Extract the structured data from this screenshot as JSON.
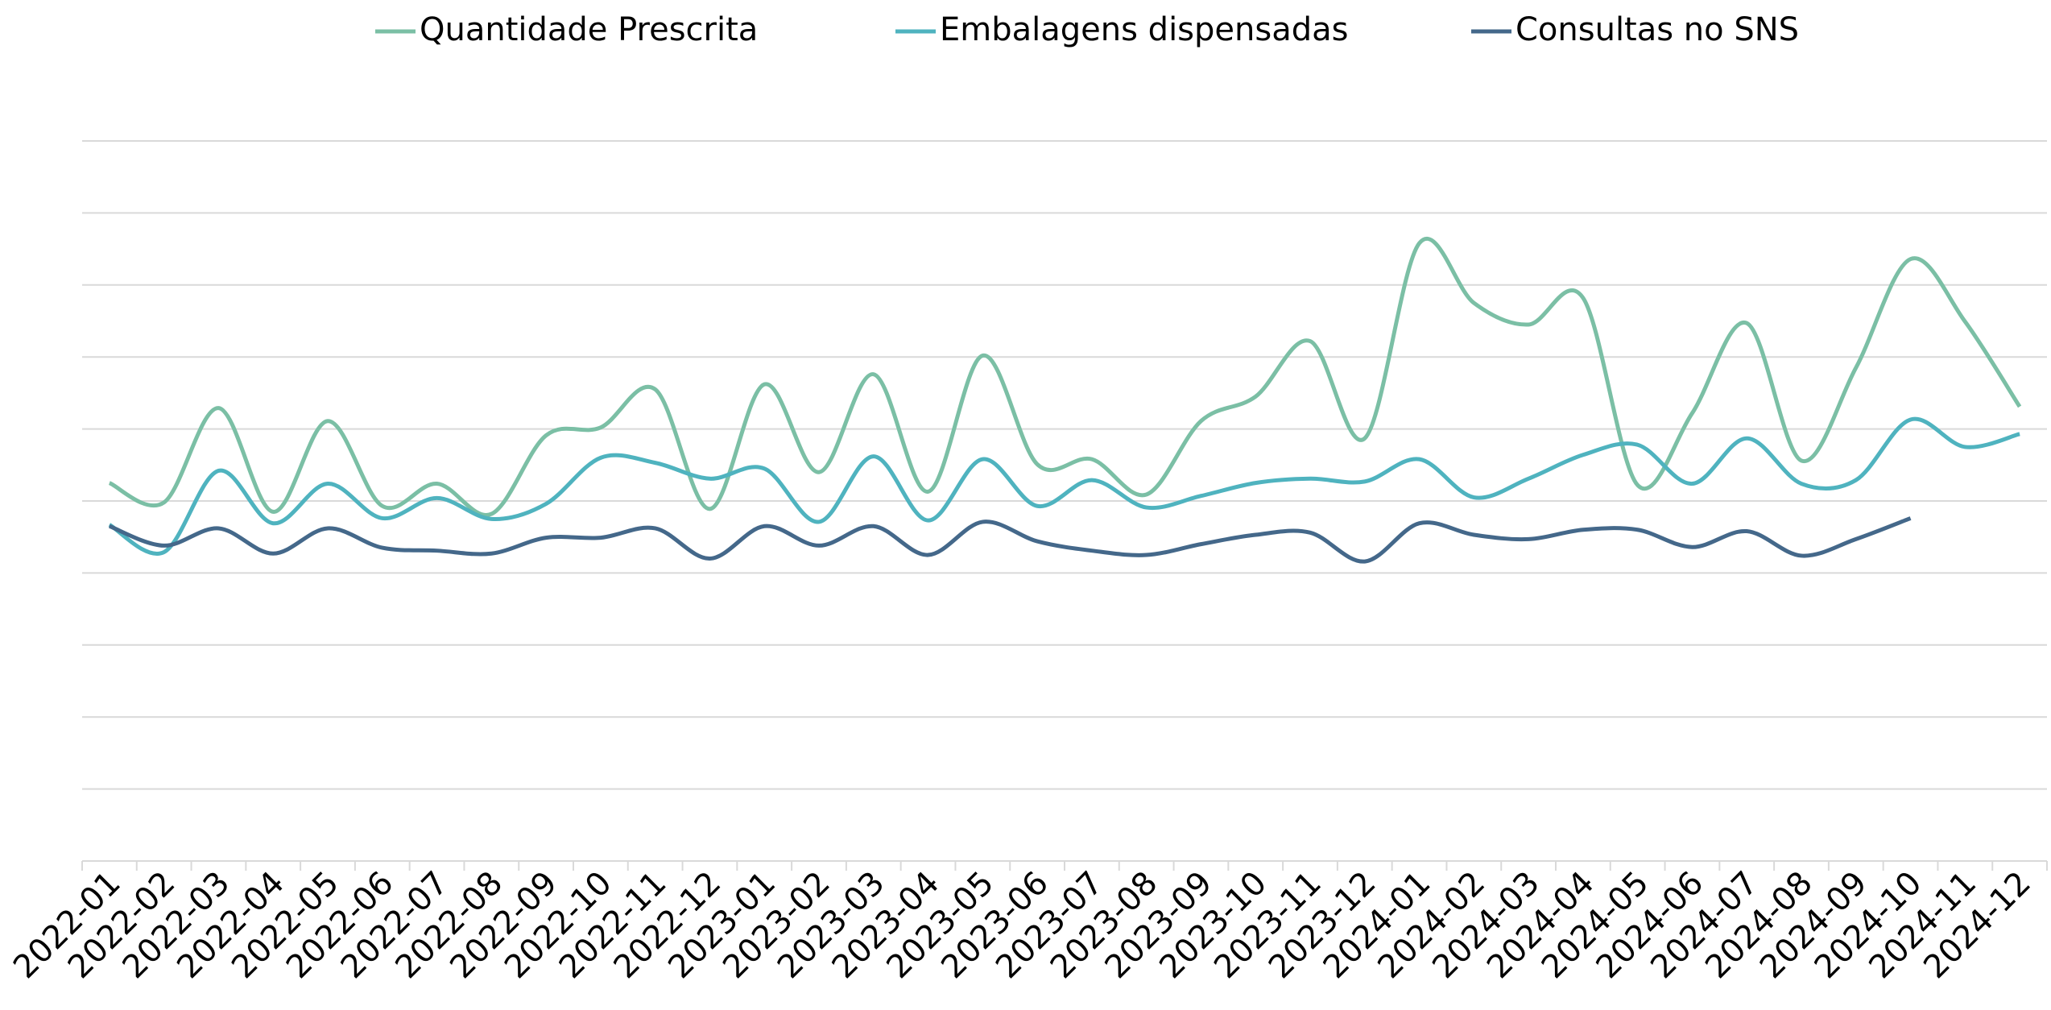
{
  "chart_data": {
    "type": "line",
    "categories": [
      "2022-01",
      "2022-02",
      "2022-03",
      "2022-04",
      "2022-05",
      "2022-06",
      "2022-07",
      "2022-08",
      "2022-09",
      "2022-10",
      "2022-11",
      "2022-12",
      "2023-01",
      "2023-02",
      "2023-03",
      "2023-04",
      "2023-05",
      "2023-06",
      "2023-07",
      "2023-08",
      "2023-09",
      "2023-10",
      "2023-11",
      "2023-12",
      "2024-01",
      "2024-02",
      "2024-03",
      "2024-04",
      "2024-05",
      "2024-06",
      "2024-07",
      "2024-08",
      "2024-09",
      "2024-10",
      "2024-11",
      "2024-12"
    ],
    "series": [
      {
        "name": "Quantidade Prescrita",
        "color": "#7bbfa5",
        "values": [
          5.25,
          4.98,
          6.29,
          4.85,
          6.11,
          4.93,
          5.24,
          4.82,
          5.91,
          6.02,
          6.55,
          4.89,
          6.62,
          5.4,
          6.76,
          5.13,
          7.02,
          5.51,
          5.58,
          5.09,
          6.11,
          6.45,
          7.22,
          5.87,
          8.58,
          7.75,
          7.45,
          7.82,
          5.22,
          6.22,
          7.47,
          5.56,
          6.85,
          8.36,
          7.49,
          6.31
        ]
      },
      {
        "name": "Embalagens dispensadas",
        "color": "#4fb3bf",
        "values": [
          4.67,
          4.29,
          5.42,
          4.69,
          5.24,
          4.76,
          5.04,
          4.75,
          4.96,
          5.6,
          5.53,
          5.31,
          5.45,
          4.71,
          5.62,
          4.73,
          5.58,
          4.93,
          5.29,
          4.91,
          5.07,
          5.25,
          5.31,
          5.27,
          5.58,
          5.05,
          5.31,
          5.64,
          5.78,
          5.24,
          5.87,
          5.24,
          5.29,
          6.13,
          5.75,
          5.93
        ]
      },
      {
        "name": "Consultas no SNS",
        "color": "#44688a",
        "values": [
          4.65,
          4.38,
          4.62,
          4.27,
          4.62,
          4.35,
          4.31,
          4.27,
          4.49,
          4.49,
          4.62,
          4.2,
          4.65,
          4.38,
          4.65,
          4.25,
          4.71,
          4.44,
          4.31,
          4.25,
          4.4,
          4.53,
          4.56,
          4.16,
          4.69,
          4.53,
          4.47,
          4.6,
          4.6,
          4.36,
          4.58,
          4.24,
          4.47,
          4.76,
          null,
          null
        ]
      }
    ],
    "ylim": [
      0,
      10
    ],
    "yticks": [
      0,
      1,
      2,
      3,
      4,
      5,
      6,
      7,
      8,
      9,
      10
    ],
    "grid": true,
    "legend": "top"
  }
}
